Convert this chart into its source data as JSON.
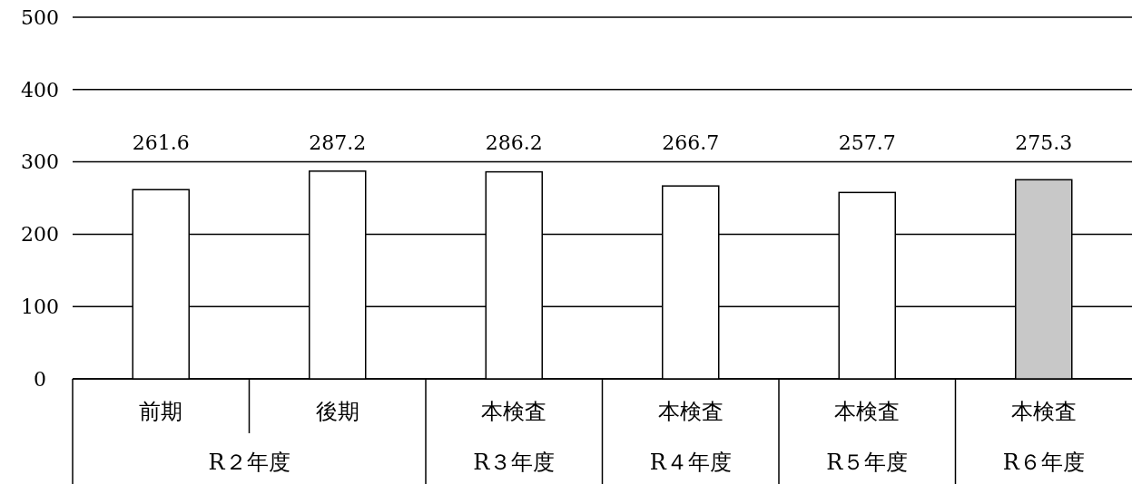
{
  "chart_data": {
    "type": "bar",
    "categories": [
      "前期",
      "後期",
      "本検査",
      "本検査",
      "本検査",
      "本検査"
    ],
    "values": [
      261.6,
      287.2,
      286.2,
      266.7,
      257.7,
      275.3
    ],
    "colors": [
      "#ffffff",
      "#ffffff",
      "#ffffff",
      "#ffffff",
      "#ffffff",
      "#c8c8c8"
    ],
    "ylim": [
      0,
      500
    ],
    "yticks": [
      0,
      100,
      200,
      300,
      400,
      500
    ],
    "grid": "y",
    "data_labels": true,
    "annotations": [
      "R２年度",
      "R３年度",
      "R４年度",
      "R５年度",
      "R６年度"
    ]
  }
}
